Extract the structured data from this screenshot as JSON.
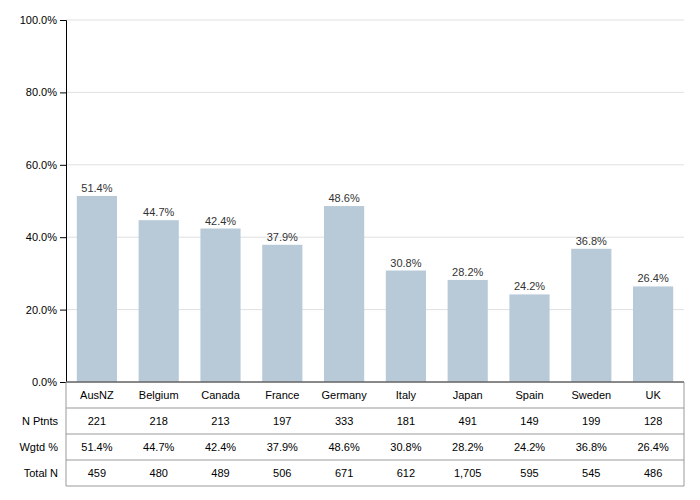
{
  "chart_data": {
    "type": "bar",
    "categories": [
      "AusNZ",
      "Belgium",
      "Canada",
      "France",
      "Germany",
      "Italy",
      "Japan",
      "Spain",
      "Sweden",
      "UK"
    ],
    "values": [
      51.4,
      44.7,
      42.4,
      37.9,
      48.6,
      30.8,
      28.2,
      24.2,
      36.8,
      26.4
    ],
    "value_labels": [
      "51.4%",
      "44.7%",
      "42.4%",
      "37.9%",
      "48.6%",
      "30.8%",
      "28.2%",
      "24.2%",
      "36.8%",
      "26.4%"
    ],
    "color": "#b8cad8",
    "ylim": [
      0,
      100
    ],
    "yticks": [
      {
        "value": 0,
        "label": "0.0%"
      },
      {
        "value": 20,
        "label": "20.0%"
      },
      {
        "value": 40,
        "label": "40.0%"
      },
      {
        "value": 60,
        "label": "60.0%"
      },
      {
        "value": 80,
        "label": "80.0%"
      },
      {
        "value": 100,
        "label": "100.0%"
      }
    ],
    "grid": true,
    "tick_labels": "y",
    "table": [
      {
        "label": "N Ptnts",
        "cells": [
          "221",
          "218",
          "213",
          "197",
          "333",
          "181",
          "491",
          "149",
          "199",
          "128"
        ]
      },
      {
        "label": "Wgtd %",
        "cells": [
          "51.4%",
          "44.7%",
          "42.4%",
          "37.9%",
          "48.6%",
          "30.8%",
          "28.2%",
          "24.2%",
          "36.8%",
          "26.4%"
        ]
      },
      {
        "label": "Total N",
        "cells": [
          "459",
          "480",
          "489",
          "506",
          "671",
          "612",
          "1,705",
          "595",
          "545",
          "486"
        ]
      }
    ]
  }
}
